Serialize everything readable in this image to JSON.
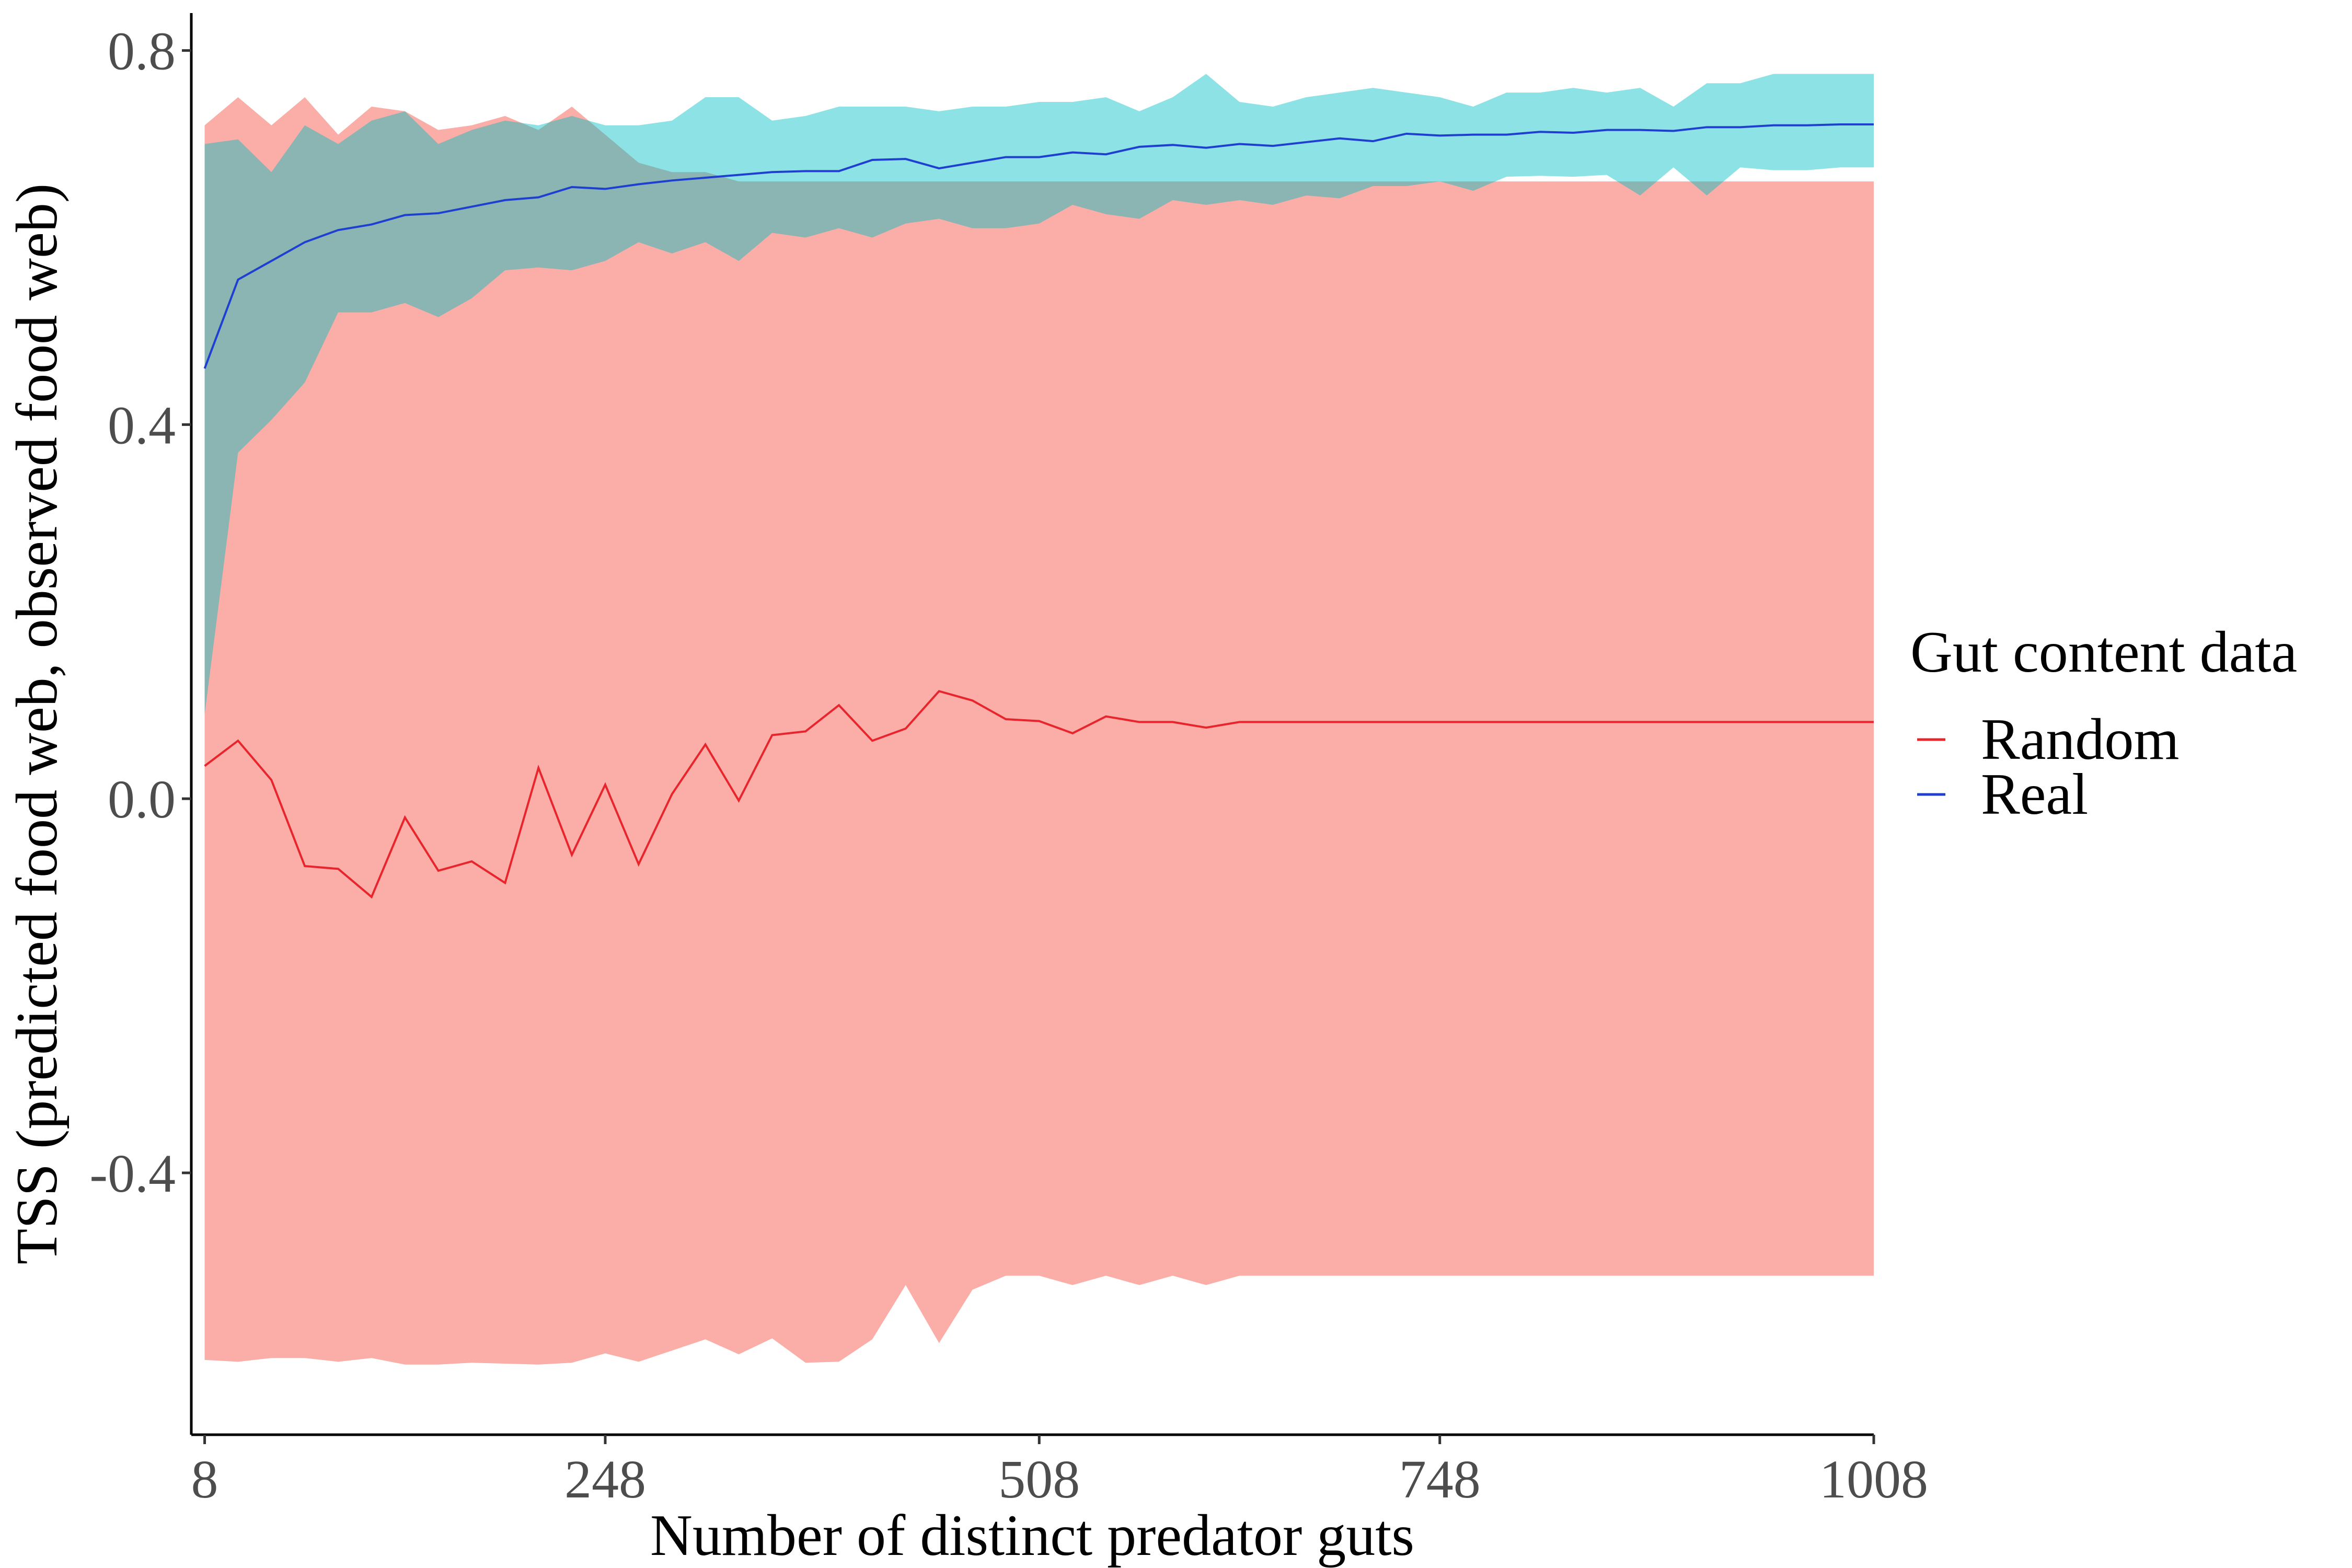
{
  "chart_data": {
    "type": "line",
    "title": "",
    "xlabel": "Number of distinct predator guts",
    "ylabel": "TSS (predicted food web, observed food web)",
    "xlim": [
      0,
      1008
    ],
    "ylim": [
      -0.68,
      0.84
    ],
    "x_ticks": [
      8,
      248,
      508,
      748,
      1008
    ],
    "x_tick_labels": [
      "8",
      "248",
      "508",
      "748",
      "1008"
    ],
    "y_ticks": [
      -0.4,
      0.0,
      0.4,
      0.8
    ],
    "y_tick_labels": [
      "-0.4",
      "0.0",
      "0.4",
      "0.8"
    ],
    "grid": false,
    "legend": {
      "title": "Gut content data",
      "position": "right",
      "entries": [
        "Random",
        "Real"
      ]
    },
    "x": [
      8,
      28,
      48,
      68,
      88,
      108,
      128,
      148,
      168,
      188,
      208,
      228,
      248,
      268,
      288,
      308,
      328,
      348,
      368,
      388,
      408,
      428,
      448,
      468,
      488,
      508,
      528,
      548,
      568,
      588,
      608,
      628,
      648,
      668,
      688,
      708,
      728,
      748,
      768,
      788,
      808,
      828,
      848,
      868,
      888,
      908,
      928,
      948,
      968,
      988,
      1008
    ],
    "series": [
      {
        "name": "Random",
        "color": "#e8242c",
        "ribbon_color": "#f8766d",
        "values": [
          0.035,
          0.062,
          0.02,
          -0.072,
          -0.075,
          -0.105,
          -0.02,
          -0.077,
          -0.067,
          -0.09,
          0.033,
          -0.06,
          0.015,
          -0.07,
          0.005,
          0.058,
          -0.002,
          0.068,
          0.072,
          0.1,
          0.062,
          0.075,
          0.115,
          0.105,
          0.085,
          0.083,
          0.07,
          0.088,
          0.082,
          0.082,
          0.076,
          0.082,
          0.082,
          0.082,
          0.082,
          0.082,
          0.082,
          0.082,
          0.082,
          0.082,
          0.082,
          0.082,
          0.082,
          0.082,
          0.082,
          0.082,
          0.082,
          0.082,
          0.082,
          0.082,
          0.082
        ],
        "lower": [
          -0.6,
          -0.602,
          -0.598,
          -0.598,
          -0.602,
          -0.598,
          -0.605,
          -0.605,
          -0.603,
          -0.604,
          -0.605,
          -0.603,
          -0.593,
          -0.602,
          -0.59,
          -0.578,
          -0.594,
          -0.577,
          -0.603,
          -0.602,
          -0.578,
          -0.52,
          -0.582,
          -0.525,
          -0.51,
          -0.51,
          -0.52,
          -0.51,
          -0.52,
          -0.51,
          -0.52,
          -0.51,
          -0.51,
          -0.51,
          -0.51,
          -0.51,
          -0.51,
          -0.51,
          -0.51,
          -0.51,
          -0.51,
          -0.51,
          -0.51,
          -0.51,
          -0.51,
          -0.51,
          -0.51,
          -0.51,
          -0.51,
          -0.51,
          -0.51
        ],
        "upper": [
          0.72,
          0.75,
          0.72,
          0.75,
          0.71,
          0.74,
          0.735,
          0.715,
          0.72,
          0.73,
          0.715,
          0.74,
          0.71,
          0.68,
          0.67,
          0.67,
          0.66,
          0.66,
          0.66,
          0.66,
          0.66,
          0.66,
          0.66,
          0.66,
          0.66,
          0.66,
          0.66,
          0.66,
          0.66,
          0.66,
          0.66,
          0.66,
          0.66,
          0.66,
          0.66,
          0.66,
          0.66,
          0.66,
          0.66,
          0.66,
          0.66,
          0.66,
          0.66,
          0.66,
          0.66,
          0.66,
          0.66,
          0.66,
          0.66,
          0.66,
          0.66
        ]
      },
      {
        "name": "Real",
        "color": "#1f3fd0",
        "ribbon_color": "#00bfc4",
        "values": [
          0.46,
          0.555,
          0.575,
          0.595,
          0.608,
          0.614,
          0.624,
          0.626,
          0.633,
          0.64,
          0.643,
          0.654,
          0.652,
          0.657,
          0.661,
          0.664,
          0.667,
          0.67,
          0.671,
          0.671,
          0.683,
          0.684,
          0.674,
          0.68,
          0.686,
          0.686,
          0.691,
          0.689,
          0.697,
          0.699,
          0.696,
          0.7,
          0.698,
          0.702,
          0.706,
          0.703,
          0.711,
          0.709,
          0.71,
          0.71,
          0.713,
          0.712,
          0.715,
          0.715,
          0.714,
          0.718,
          0.718,
          0.72,
          0.72,
          0.721,
          0.721
        ],
        "lower": [
          0.09,
          0.37,
          0.405,
          0.445,
          0.52,
          0.52,
          0.53,
          0.515,
          0.535,
          0.565,
          0.568,
          0.565,
          0.575,
          0.595,
          0.583,
          0.595,
          0.575,
          0.605,
          0.6,
          0.61,
          0.6,
          0.615,
          0.62,
          0.61,
          0.61,
          0.615,
          0.635,
          0.625,
          0.62,
          0.64,
          0.635,
          0.64,
          0.635,
          0.645,
          0.642,
          0.655,
          0.655,
          0.66,
          0.65,
          0.665,
          0.666,
          0.665,
          0.667,
          0.645,
          0.675,
          0.645,
          0.675,
          0.672,
          0.672,
          0.675,
          0.675
        ]
      }
    ],
    "real_upper": [
      0.7,
      0.705,
      0.67,
      0.72,
      0.7,
      0.725,
      0.735,
      0.7,
      0.715,
      0.725,
      0.72,
      0.73,
      0.72,
      0.72,
      0.725,
      0.75,
      0.75,
      0.725,
      0.73,
      0.74,
      0.74,
      0.74,
      0.735,
      0.74,
      0.74,
      0.745,
      0.745,
      0.75,
      0.735,
      0.75,
      0.775,
      0.745,
      0.74,
      0.75,
      0.755,
      0.76,
      0.755,
      0.75,
      0.74,
      0.755,
      0.755,
      0.76,
      0.755,
      0.76,
      0.74,
      0.765,
      0.765,
      0.775,
      0.775,
      0.775,
      0.775
    ]
  }
}
